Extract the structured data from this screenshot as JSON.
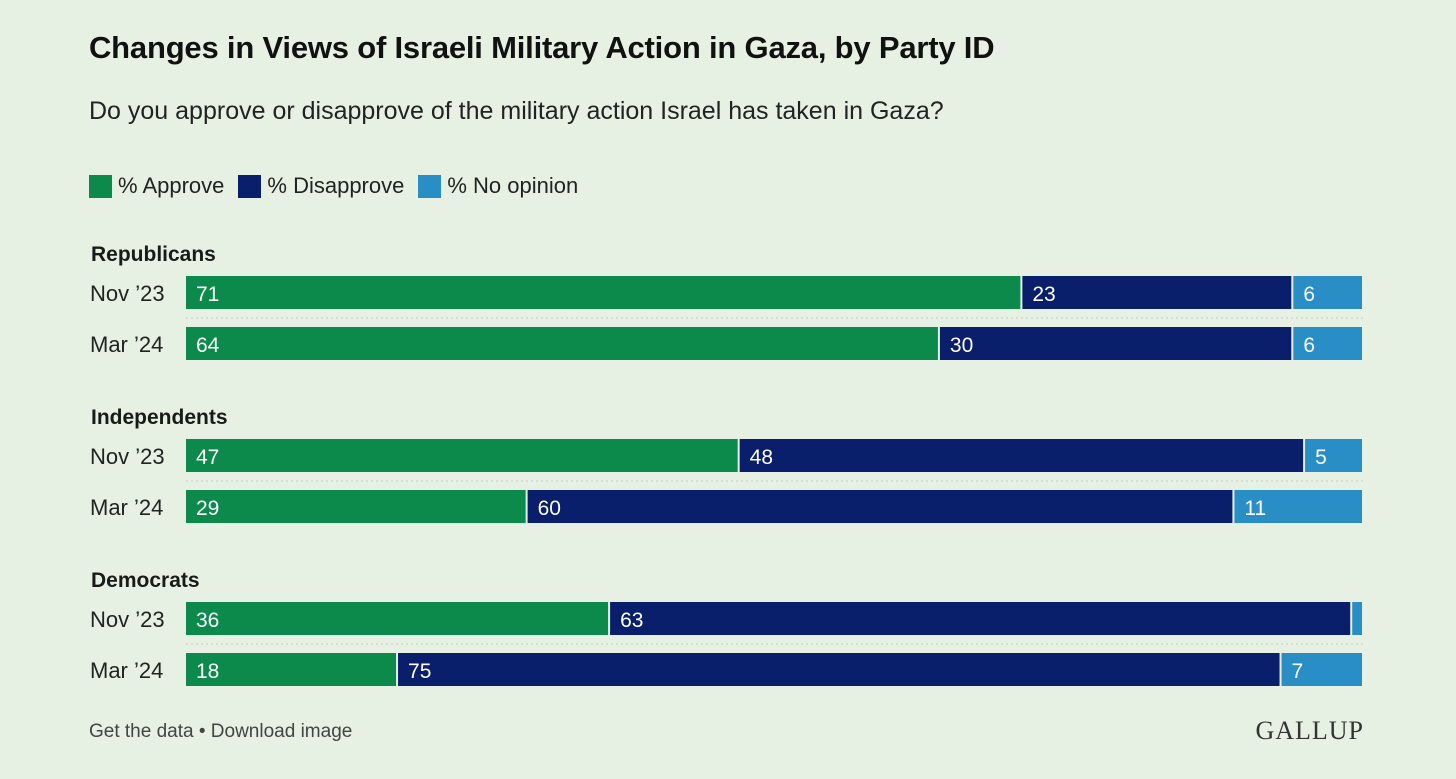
{
  "chart_data": {
    "type": "bar",
    "stacked": true,
    "orientation": "horizontal",
    "title": "Changes in Views of Israeli Military Action in Gaza, by Party ID",
    "subtitle": "Do you approve or disapprove of the military action Israel has taken in Gaza?",
    "series": [
      {
        "name": "% Approve",
        "color": "#0b8a4c"
      },
      {
        "name": "% Disapprove",
        "color": "#0a1f6b"
      },
      {
        "name": "% No opinion",
        "color": "#2a8ec6"
      }
    ],
    "groups": [
      {
        "label": "Republicans",
        "rows": [
          {
            "label": "Nov ’23",
            "values": [
              71,
              23,
              6
            ]
          },
          {
            "label": "Mar ’24",
            "values": [
              64,
              30,
              6
            ]
          }
        ]
      },
      {
        "label": "Independents",
        "rows": [
          {
            "label": "Nov ’23",
            "values": [
              47,
              48,
              5
            ]
          },
          {
            "label": "Mar ’24",
            "values": [
              29,
              60,
              11
            ]
          }
        ]
      },
      {
        "label": "Democrats",
        "rows": [
          {
            "label": "Nov ’23",
            "values": [
              36,
              63,
              1
            ]
          },
          {
            "label": "Mar ’24",
            "values": [
              18,
              75,
              7
            ]
          }
        ]
      }
    ],
    "hidden_labels": [
      [
        2,
        0,
        2
      ]
    ],
    "xlim": [
      0,
      100
    ]
  },
  "footer": {
    "get_data": "Get the data",
    "separator": "•",
    "download": "Download image"
  },
  "brand": {
    "logo": "GALLUP"
  }
}
